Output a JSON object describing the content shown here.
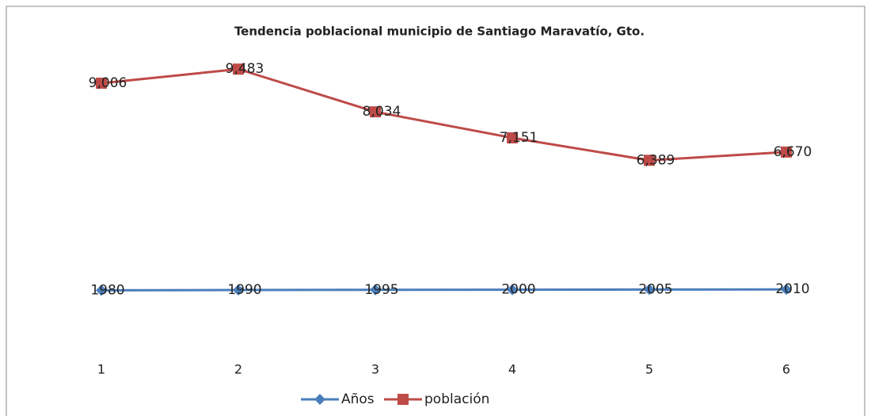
{
  "chart_data": {
    "type": "line",
    "title": "Tendencia poblacional municipio de Santiago Maravatío, Gto.",
    "categories": [
      "1",
      "2",
      "3",
      "4",
      "5",
      "6"
    ],
    "series": [
      {
        "name": "Años",
        "color": "#4a7ebb",
        "marker": "diamond",
        "values": [
          1980,
          1990,
          1995,
          2000,
          2005,
          2010
        ]
      },
      {
        "name": "población",
        "color": "#be4b48",
        "marker": "square",
        "values": [
          9006,
          9483,
          8034,
          7151,
          6389,
          6670
        ],
        "value_labels": [
          "9,006",
          "9,483",
          "8,034",
          "7,151",
          "6,389",
          "6,670"
        ]
      }
    ],
    "ylim": [
      0,
      10000
    ],
    "legend": "bottom"
  }
}
